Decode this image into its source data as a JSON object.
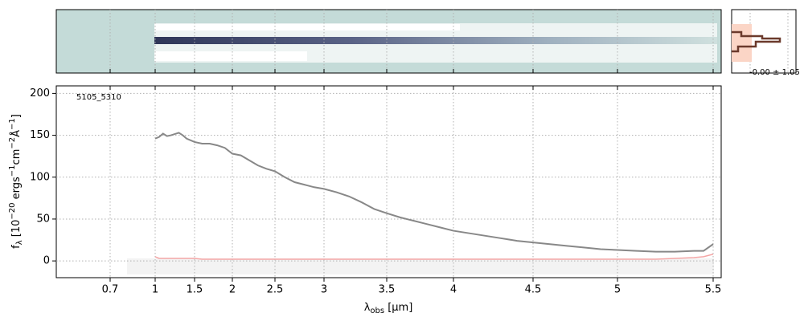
{
  "chart_data": {
    "type": "line",
    "label": "5105_5310",
    "profile_label": "-0.00 ± 1.05",
    "xlabel": [
      "λ",
      "obs",
      " [μm]"
    ],
    "ylabel": [
      "f",
      "λ",
      " [10",
      "−20",
      " ergs",
      "−1",
      "cm",
      "−2",
      "Å",
      "−1",
      "]"
    ],
    "xlim": [
      0.34,
      5.52
    ],
    "xticks": [
      0.7,
      1.0,
      1.5,
      2.0,
      2.5,
      3.0,
      3.5,
      4.0,
      4.5,
      5.0,
      5.5
    ],
    "ylim": [
      -20,
      209
    ],
    "yticks": [
      0,
      50,
      100,
      150,
      200
    ],
    "grid": true,
    "x": [
      1.0,
      1.05,
      1.1,
      1.15,
      1.2,
      1.3,
      1.35,
      1.4,
      1.5,
      1.6,
      1.7,
      1.8,
      1.9,
      2.0,
      2.1,
      2.2,
      2.3,
      2.4,
      2.5,
      2.6,
      2.7,
      2.8,
      2.9,
      3.0,
      3.1,
      3.2,
      3.3,
      3.4,
      3.5,
      3.6,
      3.7,
      3.8,
      3.9,
      4.0,
      4.1,
      4.2,
      4.3,
      4.4,
      4.5,
      4.6,
      4.7,
      4.8,
      4.9,
      5.0,
      5.1,
      5.2,
      5.3,
      5.4,
      5.45,
      5.5
    ],
    "series": [
      {
        "color": "#888888",
        "values": [
          146,
          148,
          152,
          149,
          150,
          153,
          150,
          146,
          142,
          140,
          140,
          138,
          135,
          128,
          126,
          120,
          114,
          110,
          107,
          100,
          94,
          91,
          88,
          86,
          82,
          77,
          70,
          62,
          57,
          52,
          48,
          44,
          40,
          36,
          33,
          30,
          27,
          24,
          22,
          20,
          18,
          16,
          14,
          13,
          12,
          11,
          11,
          12,
          12,
          20
        ]
      },
      {
        "color": "#f4a6a6",
        "values": [
          5,
          3,
          3,
          3,
          3,
          3,
          3,
          3,
          3,
          2,
          2,
          2,
          2,
          2,
          2,
          2,
          2,
          2,
          2,
          2,
          2,
          2,
          2,
          2,
          2,
          2,
          2,
          2,
          2,
          2,
          2,
          2,
          2,
          2,
          2,
          2,
          2,
          2,
          2,
          2,
          2,
          2,
          2,
          2,
          2,
          2,
          3,
          4,
          5,
          8
        ]
      }
    ]
  }
}
